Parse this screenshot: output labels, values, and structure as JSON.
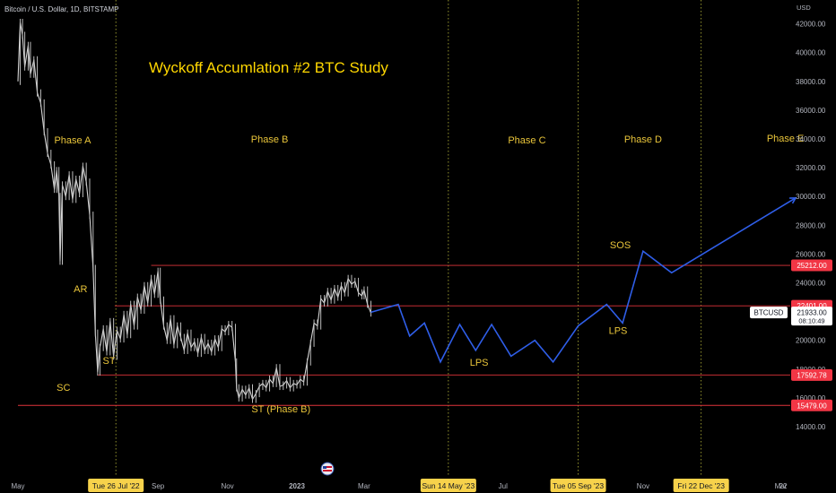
{
  "header": {
    "symbol_line": "Bitcoin / U.S. Dollar, 1D, BITSTAMP",
    "currency": "USD"
  },
  "chart_data": {
    "type": "line",
    "title": "Wyckoff Accumlation #2 BTC Study",
    "y_axis": {
      "min": 13000,
      "max": 43500,
      "ticks": [
        14000,
        16000,
        18000,
        20000,
        22000,
        24000,
        26000,
        28000,
        30000,
        32000,
        34000,
        36000,
        38000,
        40000,
        42000
      ],
      "tick_labels": [
        "14000.00",
        "16000.00",
        "18000.00",
        "20000.00",
        "22000.00",
        "24000.00",
        "26000.00",
        "28000.00",
        "30000.00",
        "32000.00",
        "34000.00",
        "36000.00",
        "38000.00",
        "40000.00",
        "42000.00"
      ]
    },
    "x_axis": {
      "start": "2022-05-01",
      "end": "2024-03-31",
      "ticks": [
        {
          "date": "2022-05-01",
          "label": "May"
        },
        {
          "date": "2022-09-01",
          "label": "Sep"
        },
        {
          "date": "2022-11-01",
          "label": "Nov"
        },
        {
          "date": "2023-01-01",
          "label": "2023"
        },
        {
          "date": "2023-03-01",
          "label": "Mar"
        },
        {
          "date": "2023-07-01",
          "label": "Jul"
        },
        {
          "date": "2023-11-01",
          "label": "Nov"
        },
        {
          "date": "2024-03-01",
          "label": "Mar"
        },
        {
          "date": "2024-05-01",
          "label": "22"
        }
      ]
    },
    "vertical_markers": [
      {
        "date": "2022-07-26",
        "label": "Tue 26 Jul '22"
      },
      {
        "date": "2023-05-14",
        "label": "Sun 14 May '23"
      },
      {
        "date": "2023-09-05",
        "label": "Tue 05 Sep '23"
      },
      {
        "date": "2023-12-22",
        "label": "Fri 22 Dec '23"
      }
    ],
    "horizontal_levels": [
      {
        "value": 25212,
        "label": "25212.00"
      },
      {
        "value": 22401,
        "label": "22401.00"
      },
      {
        "value": 17592.78,
        "label": "17592.78"
      },
      {
        "value": 15479,
        "label": "15479.00"
      }
    ],
    "current_price": {
      "symbol": "BTCUSD",
      "value": "21933.00",
      "countdown": "08:10:49"
    },
    "phases": [
      {
        "label": "Phase A",
        "date": "2022-06-18",
        "value": 33700
      },
      {
        "label": "Phase B",
        "date": "2022-12-08",
        "value": 33750
      },
      {
        "label": "Phase C",
        "date": "2023-07-22",
        "value": 33700
      },
      {
        "label": "Phase D",
        "date": "2023-11-01",
        "value": 33750
      },
      {
        "label": "Phase E",
        "date": "2024-03-05",
        "value": 33800
      }
    ],
    "annotations": [
      {
        "label": "AR",
        "date": "2022-06-25",
        "value": 23350
      },
      {
        "label": "ST",
        "date": "2022-07-20",
        "value": 18350
      },
      {
        "label": "SC",
        "date": "2022-06-10",
        "value": 16500
      },
      {
        "label": "ST (Phase B)",
        "date": "2022-12-18",
        "value": 15000
      },
      {
        "label": "LPS",
        "date": "2023-06-10",
        "value": 18250
      },
      {
        "label": "LPS",
        "date": "2023-10-10",
        "value": 20450
      },
      {
        "label": "SOS",
        "date": "2023-10-12",
        "value": 26400
      }
    ],
    "price_series": {
      "name": "BTCUSD",
      "points": [
        [
          "2022-05-01",
          38000
        ],
        [
          "2022-05-03",
          42100
        ],
        [
          "2022-05-05",
          41200
        ],
        [
          "2022-05-07",
          39000
        ],
        [
          "2022-05-10",
          40500
        ],
        [
          "2022-05-12",
          38500
        ],
        [
          "2022-05-15",
          39500
        ],
        [
          "2022-05-18",
          37200
        ],
        [
          "2022-05-21",
          36500
        ],
        [
          "2022-05-24",
          34500
        ],
        [
          "2022-05-27",
          33000
        ],
        [
          "2022-05-30",
          32200
        ],
        [
          "2022-06-02",
          30500
        ],
        [
          "2022-06-04",
          31800
        ],
        [
          "2022-06-06",
          30000
        ],
        [
          "2022-06-07",
          25500
        ],
        [
          "2022-06-09",
          30800
        ],
        [
          "2022-06-12",
          30000
        ],
        [
          "2022-06-15",
          31500
        ],
        [
          "2022-06-18",
          29800
        ],
        [
          "2022-06-21",
          31200
        ],
        [
          "2022-06-24",
          30200
        ],
        [
          "2022-06-27",
          32100
        ],
        [
          "2022-06-30",
          31000
        ],
        [
          "2022-07-03",
          28700
        ],
        [
          "2022-07-06",
          25000
        ],
        [
          "2022-07-08",
          20500
        ],
        [
          "2022-07-10",
          17800
        ],
        [
          "2022-07-12",
          19500
        ],
        [
          "2022-07-15",
          20800
        ],
        [
          "2022-07-18",
          19200
        ],
        [
          "2022-07-21",
          21300
        ],
        [
          "2022-07-24",
          18900
        ],
        [
          "2022-07-27",
          20700
        ],
        [
          "2022-07-30",
          20100
        ],
        [
          "2022-08-02",
          21800
        ],
        [
          "2022-08-05",
          20400
        ],
        [
          "2022-08-08",
          22500
        ],
        [
          "2022-08-11",
          21000
        ],
        [
          "2022-08-14",
          23000
        ],
        [
          "2022-08-17",
          22100
        ],
        [
          "2022-08-20",
          23800
        ],
        [
          "2022-08-23",
          22600
        ],
        [
          "2022-08-26",
          24300
        ],
        [
          "2022-08-29",
          23200
        ],
        [
          "2022-09-01",
          24800
        ],
        [
          "2022-09-03",
          22800
        ],
        [
          "2022-09-06",
          21000
        ],
        [
          "2022-09-09",
          20000
        ],
        [
          "2022-09-12",
          21500
        ],
        [
          "2022-09-15",
          19700
        ],
        [
          "2022-09-18",
          21000
        ],
        [
          "2022-09-21",
          20200
        ],
        [
          "2022-09-24",
          19300
        ],
        [
          "2022-09-27",
          20500
        ],
        [
          "2022-09-30",
          19500
        ],
        [
          "2022-10-03",
          19900
        ],
        [
          "2022-10-06",
          19100
        ],
        [
          "2022-10-09",
          20200
        ],
        [
          "2022-10-12",
          19300
        ],
        [
          "2022-10-15",
          19800
        ],
        [
          "2022-10-18",
          19200
        ],
        [
          "2022-10-21",
          20100
        ],
        [
          "2022-10-24",
          19500
        ],
        [
          "2022-10-27",
          20800
        ],
        [
          "2022-10-30",
          20600
        ],
        [
          "2022-11-02",
          21100
        ],
        [
          "2022-11-05",
          20900
        ],
        [
          "2022-11-08",
          18500
        ],
        [
          "2022-11-09",
          16700
        ],
        [
          "2022-11-11",
          16000
        ],
        [
          "2022-11-14",
          16600
        ],
        [
          "2022-11-17",
          16200
        ],
        [
          "2022-11-20",
          16700
        ],
        [
          "2022-11-23",
          15900
        ],
        [
          "2022-11-26",
          16300
        ],
        [
          "2022-11-29",
          16800
        ],
        [
          "2022-12-02",
          17000
        ],
        [
          "2022-12-05",
          16700
        ],
        [
          "2022-12-08",
          17300
        ],
        [
          "2022-12-11",
          17000
        ],
        [
          "2022-12-14",
          18100
        ],
        [
          "2022-12-17",
          16800
        ],
        [
          "2022-12-20",
          16900
        ],
        [
          "2022-12-23",
          17200
        ],
        [
          "2022-12-26",
          16700
        ],
        [
          "2022-12-29",
          17000
        ],
        [
          "2023-01-01",
          16900
        ],
        [
          "2023-01-04",
          17300
        ],
        [
          "2023-01-07",
          17100
        ],
        [
          "2023-01-10",
          18500
        ],
        [
          "2023-01-13",
          19800
        ],
        [
          "2023-01-16",
          21200
        ],
        [
          "2023-01-19",
          21000
        ],
        [
          "2023-01-22",
          22900
        ],
        [
          "2023-01-25",
          22600
        ],
        [
          "2023-01-28",
          23400
        ],
        [
          "2023-01-31",
          22800
        ],
        [
          "2023-02-03",
          23600
        ],
        [
          "2023-02-06",
          23000
        ],
        [
          "2023-02-09",
          23800
        ],
        [
          "2023-02-12",
          23300
        ],
        [
          "2023-02-15",
          24300
        ],
        [
          "2023-02-18",
          23900
        ],
        [
          "2023-02-21",
          24100
        ],
        [
          "2023-02-24",
          23300
        ],
        [
          "2023-02-27",
          23100
        ],
        [
          "2023-03-01",
          23500
        ],
        [
          "2023-03-04",
          22500
        ],
        [
          "2023-03-07",
          21900
        ]
      ]
    },
    "projection_series": {
      "name": "projection",
      "color": "#2f5ee8",
      "points": [
        [
          "2023-03-07",
          21950
        ],
        [
          "2023-03-31",
          22500
        ],
        [
          "2023-04-10",
          20300
        ],
        [
          "2023-04-23",
          21200
        ],
        [
          "2023-05-07",
          18500
        ],
        [
          "2023-05-24",
          21100
        ],
        [
          "2023-06-07",
          19300
        ],
        [
          "2023-06-21",
          21100
        ],
        [
          "2023-07-08",
          18900
        ],
        [
          "2023-07-29",
          20000
        ],
        [
          "2023-08-14",
          18500
        ],
        [
          "2023-09-05",
          21000
        ],
        [
          "2023-09-30",
          22500
        ],
        [
          "2023-10-14",
          21200
        ],
        [
          "2023-11-01",
          26200
        ],
        [
          "2023-11-26",
          24700
        ],
        [
          "2024-03-14",
          29900
        ]
      ]
    }
  },
  "colors": {
    "background": "#000000",
    "title": "#ffd700",
    "annotation": "#e9c53a",
    "level_line": "#e0343b",
    "level_badge": "#f23645",
    "date_badge": "#f7d24b",
    "marker_line": "#b5b53a",
    "price": "#d8d8d8",
    "projection": "#2f5ee8",
    "axis_text": "#b2b5be"
  }
}
